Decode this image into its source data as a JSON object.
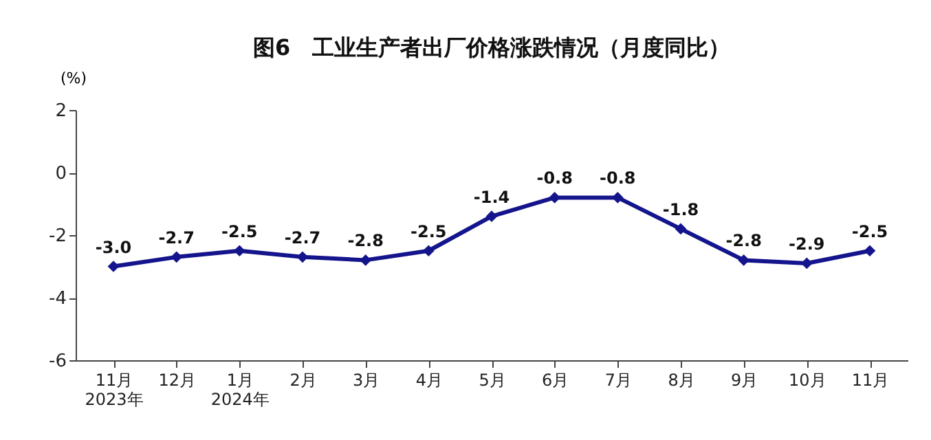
{
  "chart_data": {
    "type": "line",
    "title": "图6　工业生产者出厂价格涨跌情况（月度同比）",
    "ylabel": "(%)",
    "categories": [
      "11月\n2023年",
      "12月",
      "1月\n2024年",
      "2月",
      "3月",
      "4月",
      "5月",
      "6月",
      "7月",
      "8月",
      "9月",
      "10月",
      "11月"
    ],
    "series": [
      {
        "color": "#14148c",
        "values": [
          -3.0,
          -2.7,
          -2.5,
          -2.7,
          -2.8,
          -2.5,
          -1.4,
          -0.8,
          -0.8,
          -1.8,
          -2.8,
          -2.9,
          -2.5
        ],
        "value_labels": [
          "-3.0",
          "-2.7",
          "-2.5",
          "-2.7",
          "-2.8",
          "-2.5",
          "-1.4",
          "-0.8",
          "-0.8",
          "-1.8",
          "-2.8",
          "-2.9",
          "-2.5"
        ]
      }
    ],
    "ylim": [
      -6,
      2
    ],
    "yticks": [
      -6,
      -4,
      -2,
      0,
      2
    ],
    "marker": "diamond",
    "line_style": "solid",
    "grid": false,
    "legend": false
  }
}
